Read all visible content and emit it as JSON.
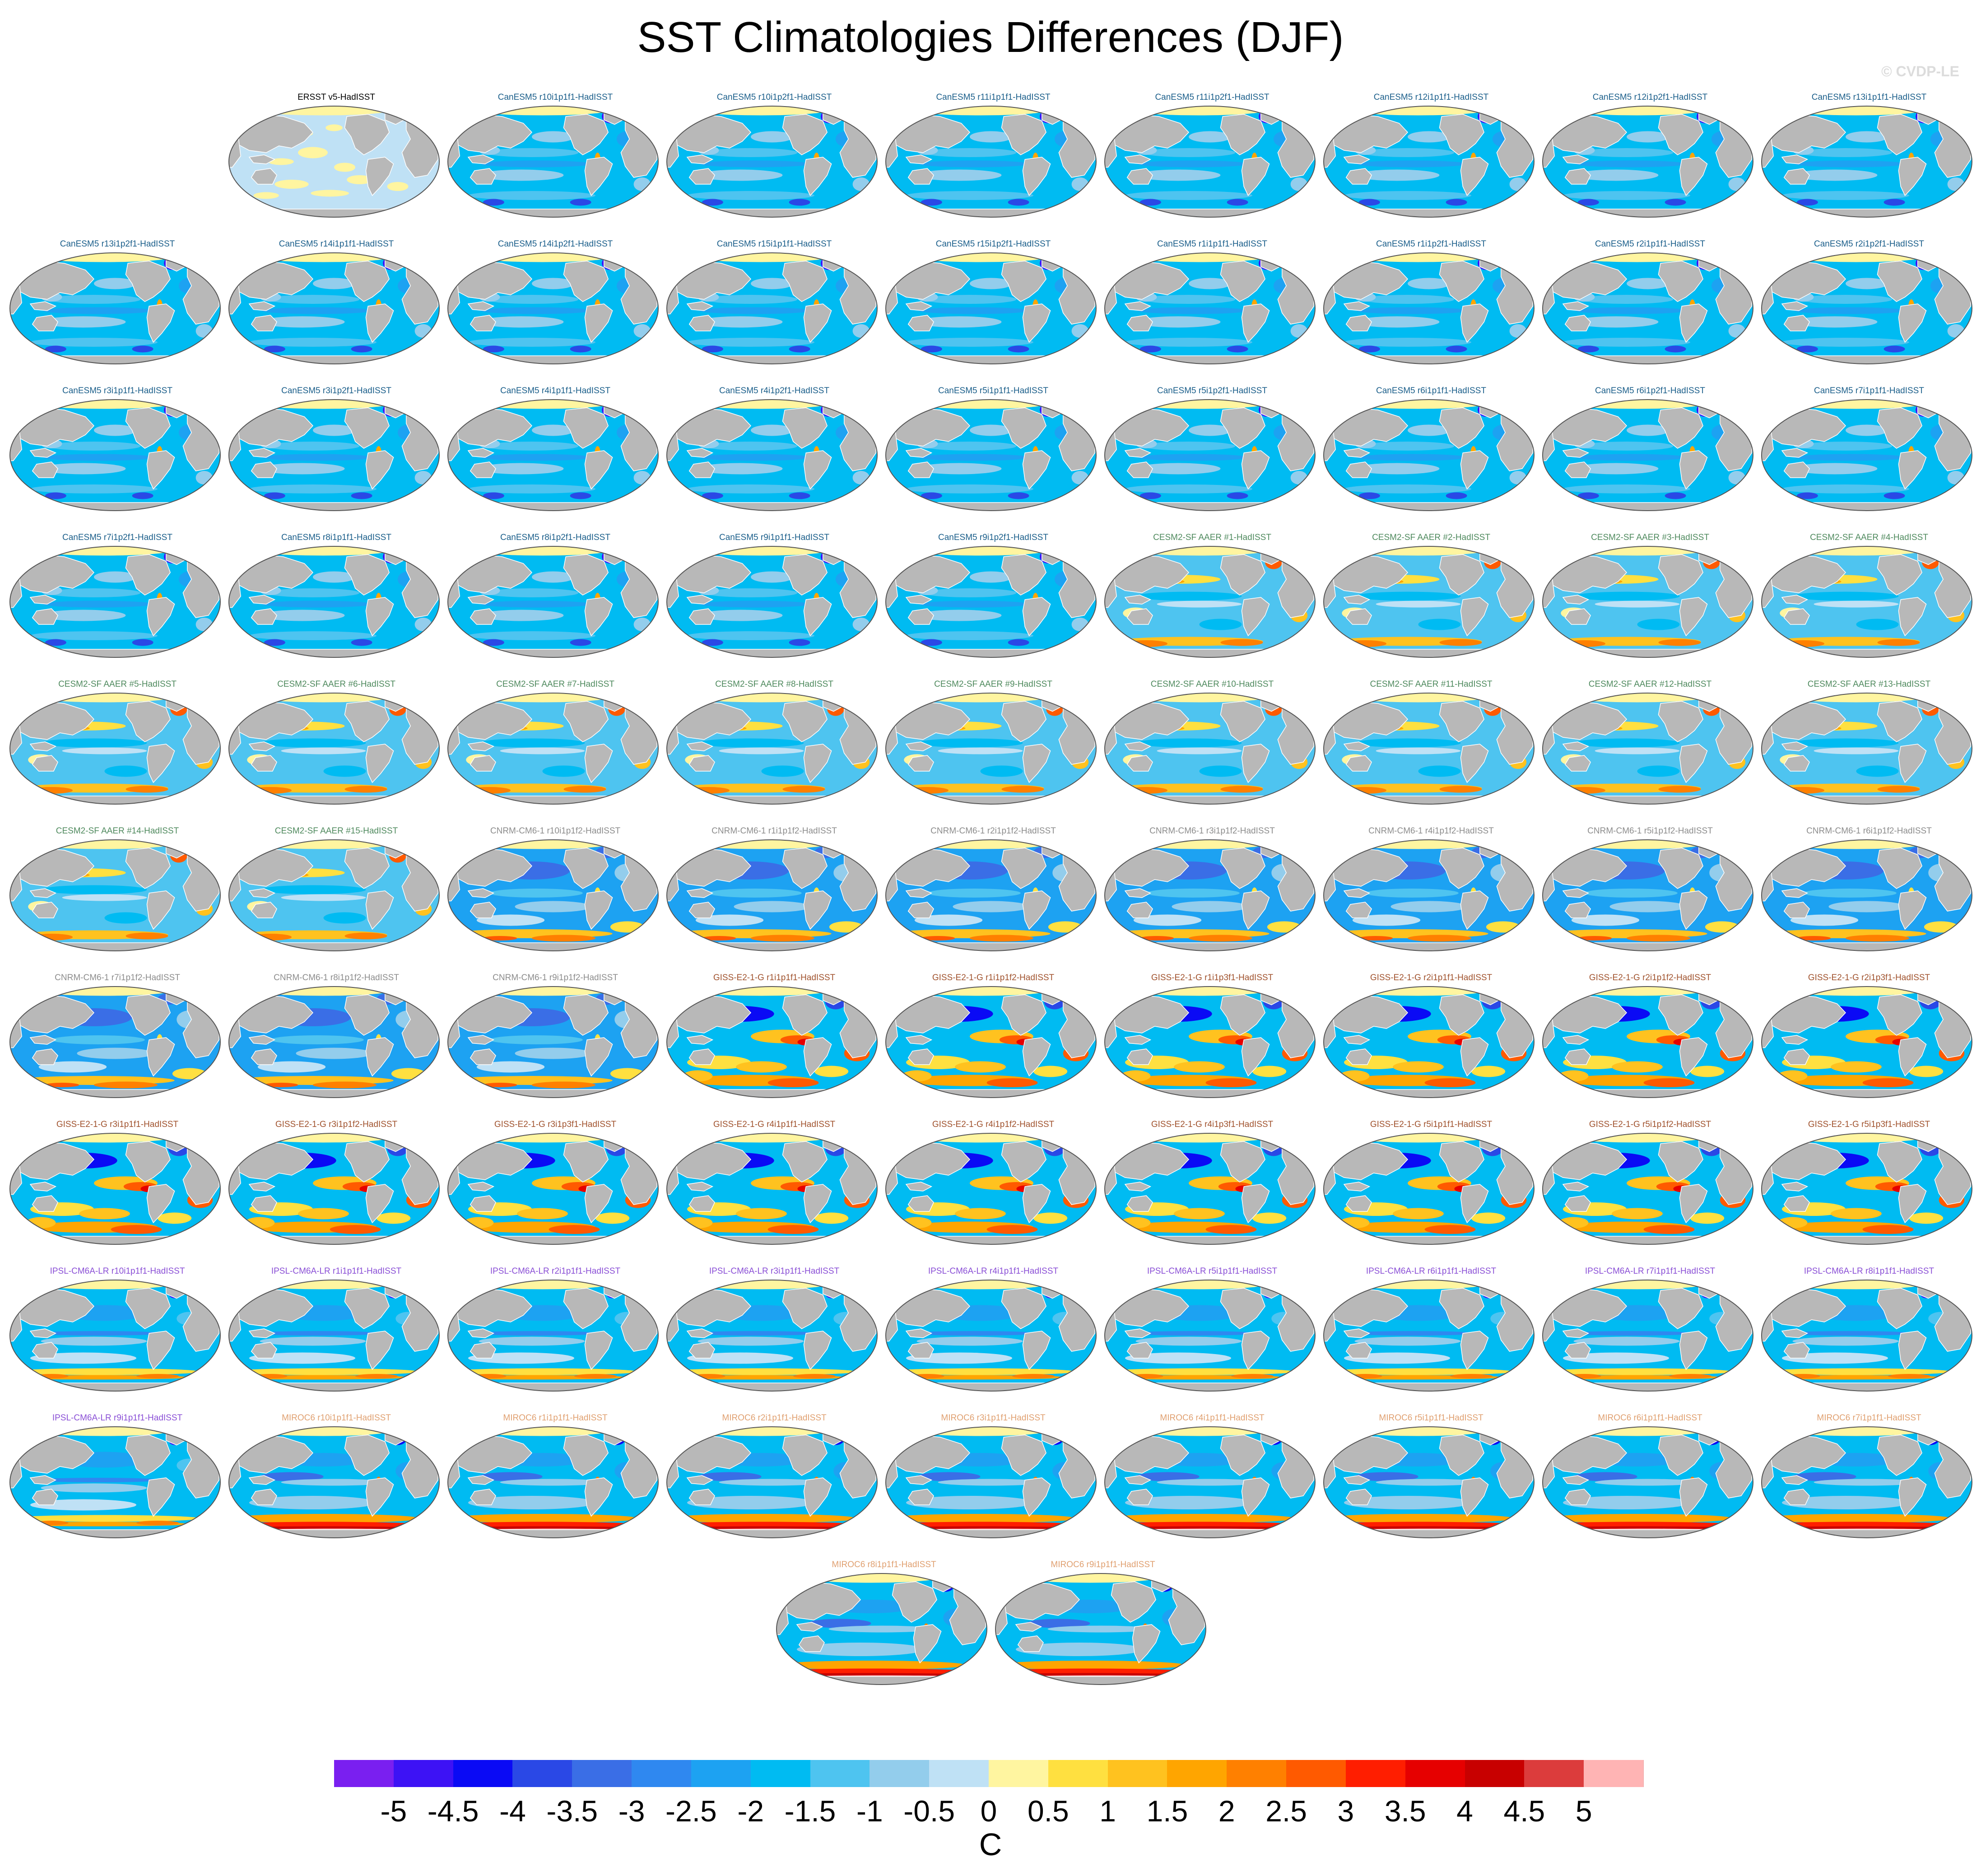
{
  "title": "SST Climatologies Differences (DJF)",
  "copyright": "© CVDP-LE",
  "colors": {
    "land": "#b8b8b8",
    "background": "#ffffff",
    "group_title_colors": {
      "ERSST": "#000000",
      "CanESM5": "#1a5e8a",
      "CESM2-SF AAER": "#4f8a5e",
      "CNRM-CM6-1": "#8c8c8c",
      "GISS-E2-1-G": "#a0522d",
      "IPSL-CM6A-LR": "#8a4fd6",
      "MIROC6": "#e0a070"
    }
  },
  "chart_data": {
    "type": "heatmap",
    "description_type": "small-multiples map panels",
    "variable": "SST difference",
    "season": "DJF",
    "projection": "Robinson-like global maps",
    "panels": [
      {
        "label": "ERSST v5-HadISST",
        "group": "ERSST",
        "pattern": "obs"
      },
      {
        "label": "CanESM5 r10i1p1f1-HadISST",
        "group": "CanESM5",
        "pattern": "canesm"
      },
      {
        "label": "CanESM5 r10i1p2f1-HadISST",
        "group": "CanESM5",
        "pattern": "canesm"
      },
      {
        "label": "CanESM5 r11i1p1f1-HadISST",
        "group": "CanESM5",
        "pattern": "canesm"
      },
      {
        "label": "CanESM5 r11i1p2f1-HadISST",
        "group": "CanESM5",
        "pattern": "canesm"
      },
      {
        "label": "CanESM5 r12i1p1f1-HadISST",
        "group": "CanESM5",
        "pattern": "canesm"
      },
      {
        "label": "CanESM5 r12i1p2f1-HadISST",
        "group": "CanESM5",
        "pattern": "canesm"
      },
      {
        "label": "CanESM5 r13i1p1f1-HadISST",
        "group": "CanESM5",
        "pattern": "canesm"
      },
      {
        "label": "CanESM5 r13i1p2f1-HadISST",
        "group": "CanESM5",
        "pattern": "canesm"
      },
      {
        "label": "CanESM5 r14i1p1f1-HadISST",
        "group": "CanESM5",
        "pattern": "canesm"
      },
      {
        "label": "CanESM5 r14i1p2f1-HadISST",
        "group": "CanESM5",
        "pattern": "canesm"
      },
      {
        "label": "CanESM5 r15i1p1f1-HadISST",
        "group": "CanESM5",
        "pattern": "canesm"
      },
      {
        "label": "CanESM5 r15i1p2f1-HadISST",
        "group": "CanESM5",
        "pattern": "canesm"
      },
      {
        "label": "CanESM5 r1i1p1f1-HadISST",
        "group": "CanESM5",
        "pattern": "canesm"
      },
      {
        "label": "CanESM5 r1i1p2f1-HadISST",
        "group": "CanESM5",
        "pattern": "canesm"
      },
      {
        "label": "CanESM5 r2i1p1f1-HadISST",
        "group": "CanESM5",
        "pattern": "canesm"
      },
      {
        "label": "CanESM5 r2i1p2f1-HadISST",
        "group": "CanESM5",
        "pattern": "canesm"
      },
      {
        "label": "CanESM5 r3i1p1f1-HadISST",
        "group": "CanESM5",
        "pattern": "canesm"
      },
      {
        "label": "CanESM5 r3i1p2f1-HadISST",
        "group": "CanESM5",
        "pattern": "canesm"
      },
      {
        "label": "CanESM5 r4i1p1f1-HadISST",
        "group": "CanESM5",
        "pattern": "canesm"
      },
      {
        "label": "CanESM5 r4i1p2f1-HadISST",
        "group": "CanESM5",
        "pattern": "canesm"
      },
      {
        "label": "CanESM5 r5i1p1f1-HadISST",
        "group": "CanESM5",
        "pattern": "canesm"
      },
      {
        "label": "CanESM5 r5i1p2f1-HadISST",
        "group": "CanESM5",
        "pattern": "canesm"
      },
      {
        "label": "CanESM5 r6i1p1f1-HadISST",
        "group": "CanESM5",
        "pattern": "canesm"
      },
      {
        "label": "CanESM5 r6i1p2f1-HadISST",
        "group": "CanESM5",
        "pattern": "canesm"
      },
      {
        "label": "CanESM5 r7i1p1f1-HadISST",
        "group": "CanESM5",
        "pattern": "canesm"
      },
      {
        "label": "CanESM5 r7i1p2f1-HadISST",
        "group": "CanESM5",
        "pattern": "canesm"
      },
      {
        "label": "CanESM5 r8i1p1f1-HadISST",
        "group": "CanESM5",
        "pattern": "canesm"
      },
      {
        "label": "CanESM5 r8i1p2f1-HadISST",
        "group": "CanESM5",
        "pattern": "canesm"
      },
      {
        "label": "CanESM5 r9i1p1f1-HadISST",
        "group": "CanESM5",
        "pattern": "canesm"
      },
      {
        "label": "CanESM5 r9i1p2f1-HadISST",
        "group": "CanESM5",
        "pattern": "canesm"
      },
      {
        "label": "CESM2-SF AAER #1-HadISST",
        "group": "CESM2-SF AAER",
        "pattern": "cesm"
      },
      {
        "label": "CESM2-SF AAER #2-HadISST",
        "group": "CESM2-SF AAER",
        "pattern": "cesm"
      },
      {
        "label": "CESM2-SF AAER #3-HadISST",
        "group": "CESM2-SF AAER",
        "pattern": "cesm"
      },
      {
        "label": "CESM2-SF AAER #4-HadISST",
        "group": "CESM2-SF AAER",
        "pattern": "cesm"
      },
      {
        "label": "CESM2-SF AAER #5-HadISST",
        "group": "CESM2-SF AAER",
        "pattern": "cesm"
      },
      {
        "label": "CESM2-SF AAER #6-HadISST",
        "group": "CESM2-SF AAER",
        "pattern": "cesm"
      },
      {
        "label": "CESM2-SF AAER #7-HadISST",
        "group": "CESM2-SF AAER",
        "pattern": "cesm"
      },
      {
        "label": "CESM2-SF AAER #8-HadISST",
        "group": "CESM2-SF AAER",
        "pattern": "cesm"
      },
      {
        "label": "CESM2-SF AAER #9-HadISST",
        "group": "CESM2-SF AAER",
        "pattern": "cesm"
      },
      {
        "label": "CESM2-SF AAER #10-HadISST",
        "group": "CESM2-SF AAER",
        "pattern": "cesm"
      },
      {
        "label": "CESM2-SF AAER #11-HadISST",
        "group": "CESM2-SF AAER",
        "pattern": "cesm"
      },
      {
        "label": "CESM2-SF AAER #12-HadISST",
        "group": "CESM2-SF AAER",
        "pattern": "cesm"
      },
      {
        "label": "CESM2-SF AAER #13-HadISST",
        "group": "CESM2-SF AAER",
        "pattern": "cesm"
      },
      {
        "label": "CESM2-SF AAER #14-HadISST",
        "group": "CESM2-SF AAER",
        "pattern": "cesm"
      },
      {
        "label": "CESM2-SF AAER #15-HadISST",
        "group": "CESM2-SF AAER",
        "pattern": "cesm"
      },
      {
        "label": "CNRM-CM6-1 r10i1p1f2-HadISST",
        "group": "CNRM-CM6-1",
        "pattern": "cnrm"
      },
      {
        "label": "CNRM-CM6-1 r1i1p1f2-HadISST",
        "group": "CNRM-CM6-1",
        "pattern": "cnrm"
      },
      {
        "label": "CNRM-CM6-1 r2i1p1f2-HadISST",
        "group": "CNRM-CM6-1",
        "pattern": "cnrm"
      },
      {
        "label": "CNRM-CM6-1 r3i1p1f2-HadISST",
        "group": "CNRM-CM6-1",
        "pattern": "cnrm"
      },
      {
        "label": "CNRM-CM6-1 r4i1p1f2-HadISST",
        "group": "CNRM-CM6-1",
        "pattern": "cnrm"
      },
      {
        "label": "CNRM-CM6-1 r5i1p1f2-HadISST",
        "group": "CNRM-CM6-1",
        "pattern": "cnrm"
      },
      {
        "label": "CNRM-CM6-1 r6i1p1f2-HadISST",
        "group": "CNRM-CM6-1",
        "pattern": "cnrm"
      },
      {
        "label": "CNRM-CM6-1 r7i1p1f2-HadISST",
        "group": "CNRM-CM6-1",
        "pattern": "cnrm"
      },
      {
        "label": "CNRM-CM6-1 r8i1p1f2-HadISST",
        "group": "CNRM-CM6-1",
        "pattern": "cnrm"
      },
      {
        "label": "CNRM-CM6-1 r9i1p1f2-HadISST",
        "group": "CNRM-CM6-1",
        "pattern": "cnrm"
      },
      {
        "label": "GISS-E2-1-G r1i1p1f1-HadISST",
        "group": "GISS-E2-1-G",
        "pattern": "giss"
      },
      {
        "label": "GISS-E2-1-G r1i1p1f2-HadISST",
        "group": "GISS-E2-1-G",
        "pattern": "giss"
      },
      {
        "label": "GISS-E2-1-G r1i1p3f1-HadISST",
        "group": "GISS-E2-1-G",
        "pattern": "giss"
      },
      {
        "label": "GISS-E2-1-G r2i1p1f1-HadISST",
        "group": "GISS-E2-1-G",
        "pattern": "giss"
      },
      {
        "label": "GISS-E2-1-G r2i1p1f2-HadISST",
        "group": "GISS-E2-1-G",
        "pattern": "giss"
      },
      {
        "label": "GISS-E2-1-G r2i1p3f1-HadISST",
        "group": "GISS-E2-1-G",
        "pattern": "giss"
      },
      {
        "label": "GISS-E2-1-G r3i1p1f1-HadISST",
        "group": "GISS-E2-1-G",
        "pattern": "giss"
      },
      {
        "label": "GISS-E2-1-G r3i1p1f2-HadISST",
        "group": "GISS-E2-1-G",
        "pattern": "giss"
      },
      {
        "label": "GISS-E2-1-G r3i1p3f1-HadISST",
        "group": "GISS-E2-1-G",
        "pattern": "giss"
      },
      {
        "label": "GISS-E2-1-G r4i1p1f1-HadISST",
        "group": "GISS-E2-1-G",
        "pattern": "giss"
      },
      {
        "label": "GISS-E2-1-G r4i1p1f2-HadISST",
        "group": "GISS-E2-1-G",
        "pattern": "giss"
      },
      {
        "label": "GISS-E2-1-G r4i1p3f1-HadISST",
        "group": "GISS-E2-1-G",
        "pattern": "giss"
      },
      {
        "label": "GISS-E2-1-G r5i1p1f1-HadISST",
        "group": "GISS-E2-1-G",
        "pattern": "giss"
      },
      {
        "label": "GISS-E2-1-G r5i1p1f2-HadISST",
        "group": "GISS-E2-1-G",
        "pattern": "giss"
      },
      {
        "label": "GISS-E2-1-G r5i1p3f1-HadISST",
        "group": "GISS-E2-1-G",
        "pattern": "giss"
      },
      {
        "label": "IPSL-CM6A-LR r10i1p1f1-HadISST",
        "group": "IPSL-CM6A-LR",
        "pattern": "ipsl"
      },
      {
        "label": "IPSL-CM6A-LR r1i1p1f1-HadISST",
        "group": "IPSL-CM6A-LR",
        "pattern": "ipsl"
      },
      {
        "label": "IPSL-CM6A-LR r2i1p1f1-HadISST",
        "group": "IPSL-CM6A-LR",
        "pattern": "ipsl"
      },
      {
        "label": "IPSL-CM6A-LR r3i1p1f1-HadISST",
        "group": "IPSL-CM6A-LR",
        "pattern": "ipsl"
      },
      {
        "label": "IPSL-CM6A-LR r4i1p1f1-HadISST",
        "group": "IPSL-CM6A-LR",
        "pattern": "ipsl"
      },
      {
        "label": "IPSL-CM6A-LR r5i1p1f1-HadISST",
        "group": "IPSL-CM6A-LR",
        "pattern": "ipsl"
      },
      {
        "label": "IPSL-CM6A-LR r6i1p1f1-HadISST",
        "group": "IPSL-CM6A-LR",
        "pattern": "ipsl"
      },
      {
        "label": "IPSL-CM6A-LR r7i1p1f1-HadISST",
        "group": "IPSL-CM6A-LR",
        "pattern": "ipsl"
      },
      {
        "label": "IPSL-CM6A-LR r8i1p1f1-HadISST",
        "group": "IPSL-CM6A-LR",
        "pattern": "ipsl"
      },
      {
        "label": "IPSL-CM6A-LR r9i1p1f1-HadISST",
        "group": "IPSL-CM6A-LR",
        "pattern": "ipsl"
      },
      {
        "label": "MIROC6 r10i1p1f1-HadISST",
        "group": "MIROC6",
        "pattern": "miroc"
      },
      {
        "label": "MIROC6 r1i1p1f1-HadISST",
        "group": "MIROC6",
        "pattern": "miroc"
      },
      {
        "label": "MIROC6 r2i1p1f1-HadISST",
        "group": "MIROC6",
        "pattern": "miroc"
      },
      {
        "label": "MIROC6 r3i1p1f1-HadISST",
        "group": "MIROC6",
        "pattern": "miroc"
      },
      {
        "label": "MIROC6 r4i1p1f1-HadISST",
        "group": "MIROC6",
        "pattern": "miroc"
      },
      {
        "label": "MIROC6 r5i1p1f1-HadISST",
        "group": "MIROC6",
        "pattern": "miroc"
      },
      {
        "label": "MIROC6 r6i1p1f1-HadISST",
        "group": "MIROC6",
        "pattern": "miroc"
      },
      {
        "label": "MIROC6 r7i1p1f1-HadISST",
        "group": "MIROC6",
        "pattern": "miroc"
      },
      {
        "label": "MIROC6 r8i1p1f1-HadISST",
        "group": "MIROC6",
        "pattern": "miroc"
      },
      {
        "label": "MIROC6 r9i1p1f1-HadISST",
        "group": "MIROC6",
        "pattern": "miroc"
      }
    ],
    "colorbar": {
      "unit": "C",
      "min": -5,
      "max": 5,
      "tick_labels": [
        "-5",
        "-4.5",
        "-4",
        "-3.5",
        "-3",
        "-2.5",
        "-2",
        "-1.5",
        "-1",
        "-0.5",
        "0",
        "0.5",
        "1",
        "1.5",
        "2",
        "2.5",
        "3",
        "3.5",
        "4",
        "4.5",
        "5"
      ],
      "colors": [
        "#7a1ff0",
        "#3d12f5",
        "#0a0af5",
        "#2a48e6",
        "#3a6ee6",
        "#2f88f0",
        "#1da2f2",
        "#00bbf2",
        "#4ec4f0",
        "#93cdec",
        "#bfe1f5",
        "#fff5a0",
        "#ffe040",
        "#ffc21f",
        "#ffa500",
        "#ff8000",
        "#ff5a00",
        "#ff1e00",
        "#e60000",
        "#c80000",
        "#dc3c3c",
        "#ffb4b4"
      ]
    }
  }
}
